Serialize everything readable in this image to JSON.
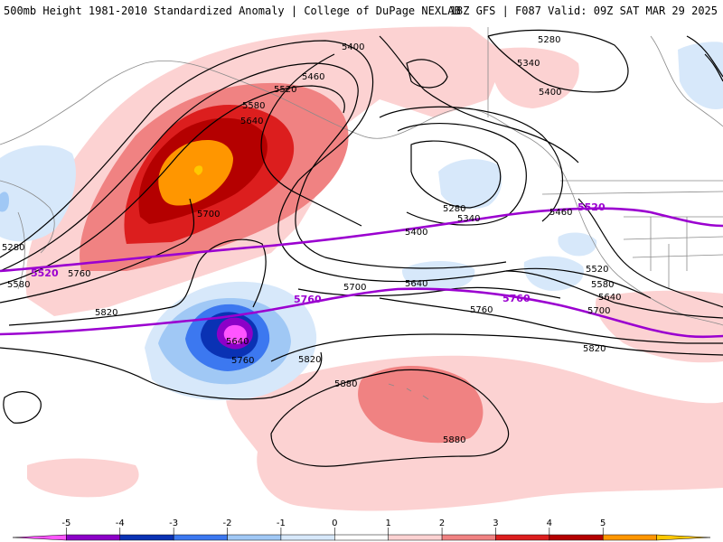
{
  "header": {
    "title_left": "500mb Height 1981-2010 Standardized Anomaly | College of DuPage NEXLAB",
    "title_right": "18Z GFS | F087 Valid: 09Z SAT MAR 29 2025"
  },
  "map": {
    "height_unit": "m (500mb geopotential height)",
    "contour_labels": [
      "5400",
      "5280",
      "5340",
      "5400",
      "5460",
      "5520",
      "5580",
      "5640",
      "5700",
      "5280",
      "5340",
      "5400",
      "5460",
      "5520",
      "5580",
      "5640",
      "5700",
      "5280",
      "5580",
      "5760",
      "5820",
      "5700",
      "5640",
      "5760",
      "5820",
      "5640",
      "5760",
      "5820",
      "5880",
      "5880",
      "5520",
      "5580",
      "5640",
      "5700",
      "5760",
      "5820"
    ],
    "highlight_labels": [
      "5520",
      "5520",
      "5760",
      "5760"
    ],
    "highlight_color": "#9b00d0"
  },
  "colorbar": {
    "ticks": [
      "-5",
      "-4",
      "-3",
      "-2",
      "-1",
      "0",
      "1",
      "2",
      "3",
      "4",
      "5"
    ],
    "colors": [
      "#ff55ff",
      "#8c00c8",
      "#0a32b4",
      "#3c78f0",
      "#a0c8f5",
      "#d7e8fa",
      "#ffffff",
      "#fcd2d2",
      "#f08282",
      "#dc1e1e",
      "#b40000",
      "#ff9600",
      "#ffc800"
    ]
  }
}
